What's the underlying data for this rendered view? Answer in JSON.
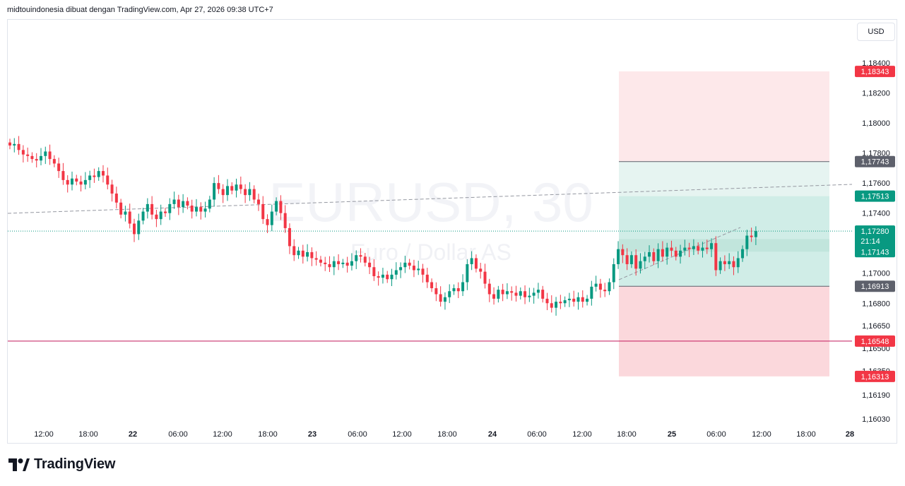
{
  "header": {
    "text": "midtouindonesia dibuat dengan TradingView.com, Apr 27, 2026 09:38 UTC+7"
  },
  "currency_button": "USD",
  "footer": {
    "brand": "TradingView"
  },
  "colors": {
    "up": "#089981",
    "down": "#f23645",
    "profit_zone": "#d0ede7",
    "target_zone": "#e6f4f1",
    "loss_zone": "#fbd8dc",
    "upper_loss_zone": "#fde8ea",
    "horizontal_line": "#c2185b",
    "price_line": "#089981"
  },
  "chart_data": {
    "type": "candlestick",
    "symbol": "EURUSD, 30",
    "description": "Euro / Dollar AS",
    "x_tick_labels": [
      "12:00",
      "18:00",
      "22",
      "06:00",
      "12:00",
      "18:00",
      "23",
      "06:00",
      "12:00",
      "18:00",
      "24",
      "06:00",
      "12:00",
      "18:00",
      "25",
      "06:00",
      "12:00",
      "18:00",
      "28"
    ],
    "x_tick_bold": [
      false,
      false,
      true,
      false,
      false,
      false,
      true,
      false,
      false,
      false,
      true,
      false,
      false,
      false,
      true,
      false,
      false,
      false,
      true
    ],
    "y_tick_labels": [
      "1,18400",
      "1,18200",
      "1,18000",
      "1,17800",
      "1,17600",
      "1,17400",
      "1,17000",
      "1,16800",
      "1,16650",
      "1,16500",
      "1,16350",
      "1,16190",
      "1,16030"
    ],
    "y_tick_values": [
      1.184,
      1.182,
      1.18,
      1.178,
      1.176,
      1.174,
      1.17,
      1.168,
      1.1665,
      1.165,
      1.1635,
      1.1619,
      1.1603
    ],
    "ylim": [
      1.1598,
      1.1855
    ],
    "price_labels": [
      {
        "text": "1,18343",
        "value": 1.18343,
        "color": "#f23645"
      },
      {
        "text": "1,17743",
        "value": 1.17743,
        "color": "#5d606b"
      },
      {
        "text": "1,17513",
        "value": 1.17513,
        "color": "#089981"
      },
      {
        "text": "1,17280",
        "sub": "21:14",
        "value": 1.1728,
        "color": "#089981"
      },
      {
        "text": "1,17143",
        "value": 1.17143,
        "color": "#089981"
      },
      {
        "text": "1,16913",
        "value": 1.16913,
        "color": "#5d606b"
      },
      {
        "text": "1,16548",
        "value": 1.16548,
        "color": "#f23645"
      },
      {
        "text": "1,16313",
        "value": 1.16313,
        "color": "#f23645"
      }
    ],
    "position": {
      "entry": 1.16913,
      "profit_target": 1.17743,
      "first_target": 1.17513,
      "stop": 1.16313,
      "upper_bound": 1.18343
    },
    "horizontal_level": 1.16548,
    "last_price": 1.1728,
    "closes": [
      1.1785,
      1.1786,
      1.1782,
      1.1779,
      1.1778,
      1.1776,
      1.1775,
      1.1778,
      1.1781,
      1.1776,
      1.1773,
      1.1768,
      1.1762,
      1.1759,
      1.1763,
      1.1761,
      1.1759,
      1.1762,
      1.1765,
      1.1764,
      1.1768,
      1.1765,
      1.1759,
      1.1753,
      1.1747,
      1.1739,
      1.1741,
      1.1733,
      1.1726,
      1.1735,
      1.1741,
      1.1746,
      1.1739,
      1.1736,
      1.1741,
      1.174,
      1.1746,
      1.1749,
      1.1744,
      1.1748,
      1.1745,
      1.1741,
      1.1744,
      1.1741,
      1.1743,
      1.1749,
      1.176,
      1.1756,
      1.1752,
      1.1758,
      1.1755,
      1.1759,
      1.1756,
      1.1752,
      1.1756,
      1.1749,
      1.1746,
      1.1736,
      1.1732,
      1.1741,
      1.1748,
      1.174,
      1.173,
      1.1718,
      1.1712,
      1.1715,
      1.1711,
      1.1714,
      1.171,
      1.1709,
      1.1707,
      1.1706,
      1.1704,
      1.1708,
      1.1706,
      1.1707,
      1.1705,
      1.1708,
      1.1712,
      1.1711,
      1.1707,
      1.1704,
      1.1698,
      1.1697,
      1.1699,
      1.1696,
      1.1699,
      1.1702,
      1.1704,
      1.1707,
      1.1705,
      1.1702,
      1.1703,
      1.1699,
      1.1694,
      1.169,
      1.1686,
      1.1681,
      1.1684,
      1.1688,
      1.169,
      1.1688,
      1.1694,
      1.1706,
      1.171,
      1.1703,
      1.1701,
      1.1693,
      1.1686,
      1.1683,
      1.1689,
      1.1686,
      1.1688,
      1.1687,
      1.1685,
      1.1688,
      1.1684,
      1.1685,
      1.1687,
      1.1689,
      1.1683,
      1.168,
      1.1677,
      1.1681,
      1.168,
      1.1682,
      1.1683,
      1.1681,
      1.1684,
      1.1681,
      1.1683,
      1.1691,
      1.1693,
      1.1689,
      1.1688,
      1.1694,
      1.1706,
      1.1716,
      1.1712,
      1.1706,
      1.1712,
      1.1703,
      1.1708,
      1.1711,
      1.1714,
      1.1708,
      1.1716,
      1.1711,
      1.1717,
      1.1715,
      1.1711,
      1.1715,
      1.1717,
      1.1716,
      1.1718,
      1.1715,
      1.1717,
      1.1716,
      1.172,
      1.1702,
      1.1708,
      1.1706,
      1.1708,
      1.1704,
      1.171,
      1.1716,
      1.1725,
      1.1724,
      1.1728
    ]
  }
}
